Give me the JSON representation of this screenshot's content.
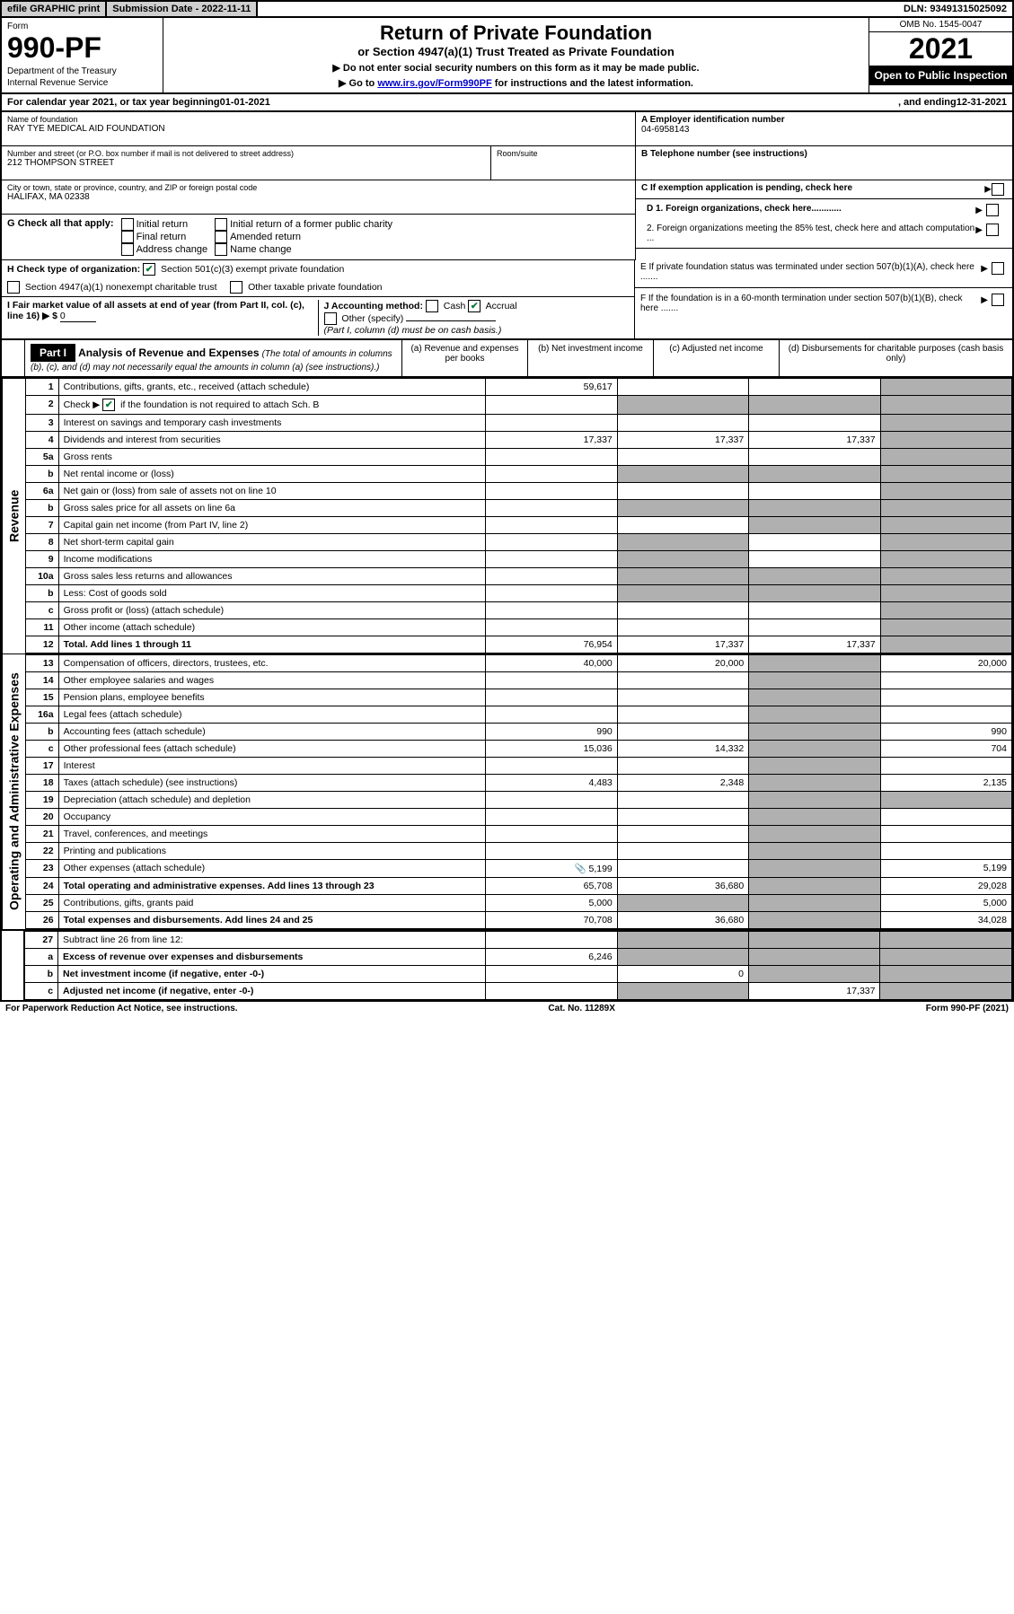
{
  "topbar": {
    "efile": "efile GRAPHIC print",
    "submission": "Submission Date - 2022-11-11",
    "dln": "DLN: 93491315025092"
  },
  "header": {
    "form_label": "Form",
    "form_number": "990-PF",
    "dept1": "Department of the Treasury",
    "dept2": "Internal Revenue Service",
    "title": "Return of Private Foundation",
    "subtitle": "or Section 4947(a)(1) Trust Treated as Private Foundation",
    "instr1": "▶ Do not enter social security numbers on this form as it may be made public.",
    "instr2_pre": "▶ Go to ",
    "instr2_link": "www.irs.gov/Form990PF",
    "instr2_post": " for instructions and the latest information.",
    "omb": "OMB No. 1545-0047",
    "year": "2021",
    "open_public": "Open to Public Inspection"
  },
  "calendar": {
    "text_pre": "For calendar year 2021, or tax year beginning ",
    "begin": "01-01-2021",
    "text_mid": " , and ending ",
    "end": "12-31-2021"
  },
  "foundation": {
    "name_label": "Name of foundation",
    "name": "RAY TYE MEDICAL AID FOUNDATION",
    "addr_label": "Number and street (or P.O. box number if mail is not delivered to street address)",
    "addr": "212 THOMPSON STREET",
    "room_label": "Room/suite",
    "city_label": "City or town, state or province, country, and ZIP or foreign postal code",
    "city": "HALIFAX, MA  02338",
    "ein_label": "A Employer identification number",
    "ein": "04-6958143",
    "phone_label": "B Telephone number (see instructions)",
    "pending_label": "C If exemption application is pending, check here"
  },
  "g_section": {
    "lead": "G Check all that apply:",
    "opts": [
      "Initial return",
      "Final return",
      "Address change",
      "Initial return of a former public charity",
      "Amended return",
      "Name change"
    ]
  },
  "h_section": {
    "lead": "H Check type of organization:",
    "opt1": "Section 501(c)(3) exempt private foundation",
    "opt2": "Section 4947(a)(1) nonexempt charitable trust",
    "opt3": "Other taxable private foundation",
    "opt1_checked": true
  },
  "i_section": {
    "lead": "I Fair market value of all assets at end of year (from Part II, col. (c), line 16) ▶ $",
    "value": "0"
  },
  "j_section": {
    "lead": "J Accounting method:",
    "cash": "Cash",
    "accrual": "Accrual",
    "accrual_checked": true,
    "other": "Other (specify)",
    "note": "(Part I, column (d) must be on cash basis.)"
  },
  "d_section": {
    "d1": "D 1. Foreign organizations, check here............",
    "d2": "2. Foreign organizations meeting the 85% test, check here and attach computation ..."
  },
  "e_section": "E  If private foundation status was terminated under section 507(b)(1)(A), check here .......",
  "f_section": "F  If the foundation is in a 60-month termination under section 507(b)(1)(B), check here .......",
  "part1": {
    "label": "Part I",
    "title": "Analysis of Revenue and Expenses",
    "title_note": "(The total of amounts in columns (b), (c), and (d) may not necessarily equal the amounts in column (a) (see instructions).)",
    "col_a": "(a) Revenue and expenses per books",
    "col_b": "(b) Net investment income",
    "col_c": "(c) Adjusted net income",
    "col_d": "(d) Disbursements for charitable purposes (cash basis only)"
  },
  "side_labels": {
    "revenue": "Revenue",
    "expenses": "Operating and Administrative Expenses"
  },
  "rows": {
    "r1": {
      "n": "1",
      "d": "Contributions, gifts, grants, etc., received (attach schedule)",
      "a": "59,617"
    },
    "r2": {
      "n": "2",
      "d_pre": "Check ▶ ",
      "d_post": " if the foundation is not required to attach Sch. B",
      "checked": true
    },
    "r3": {
      "n": "3",
      "d": "Interest on savings and temporary cash investments"
    },
    "r4": {
      "n": "4",
      "d": "Dividends and interest from securities",
      "a": "17,337",
      "b": "17,337",
      "c": "17,337"
    },
    "r5a": {
      "n": "5a",
      "d": "Gross rents"
    },
    "r5b": {
      "n": "b",
      "d": "Net rental income or (loss)"
    },
    "r6a": {
      "n": "6a",
      "d": "Net gain or (loss) from sale of assets not on line 10"
    },
    "r6b": {
      "n": "b",
      "d": "Gross sales price for all assets on line 6a"
    },
    "r7": {
      "n": "7",
      "d": "Capital gain net income (from Part IV, line 2)"
    },
    "r8": {
      "n": "8",
      "d": "Net short-term capital gain"
    },
    "r9": {
      "n": "9",
      "d": "Income modifications"
    },
    "r10a": {
      "n": "10a",
      "d": "Gross sales less returns and allowances"
    },
    "r10b": {
      "n": "b",
      "d": "Less: Cost of goods sold"
    },
    "r10c": {
      "n": "c",
      "d": "Gross profit or (loss) (attach schedule)"
    },
    "r11": {
      "n": "11",
      "d": "Other income (attach schedule)"
    },
    "r12": {
      "n": "12",
      "d": "Total. Add lines 1 through 11",
      "a": "76,954",
      "b": "17,337",
      "c": "17,337",
      "bold": true
    },
    "r13": {
      "n": "13",
      "d": "Compensation of officers, directors, trustees, etc.",
      "a": "40,000",
      "b": "20,000",
      "dd": "20,000"
    },
    "r14": {
      "n": "14",
      "d": "Other employee salaries and wages"
    },
    "r15": {
      "n": "15",
      "d": "Pension plans, employee benefits"
    },
    "r16a": {
      "n": "16a",
      "d": "Legal fees (attach schedule)"
    },
    "r16b": {
      "n": "b",
      "d": "Accounting fees (attach schedule)",
      "a": "990",
      "dd": "990"
    },
    "r16c": {
      "n": "c",
      "d": "Other professional fees (attach schedule)",
      "a": "15,036",
      "b": "14,332",
      "dd": "704"
    },
    "r17": {
      "n": "17",
      "d": "Interest"
    },
    "r18": {
      "n": "18",
      "d": "Taxes (attach schedule) (see instructions)",
      "a": "4,483",
      "b": "2,348",
      "dd": "2,135"
    },
    "r19": {
      "n": "19",
      "d": "Depreciation (attach schedule) and depletion"
    },
    "r20": {
      "n": "20",
      "d": "Occupancy"
    },
    "r21": {
      "n": "21",
      "d": "Travel, conferences, and meetings"
    },
    "r22": {
      "n": "22",
      "d": "Printing and publications"
    },
    "r23": {
      "n": "23",
      "d": "Other expenses (attach schedule)",
      "a": "5,199",
      "dd": "5,199",
      "icon": true
    },
    "r24": {
      "n": "24",
      "d": "Total operating and administrative expenses. Add lines 13 through 23",
      "a": "65,708",
      "b": "36,680",
      "dd": "29,028",
      "bold": true
    },
    "r25": {
      "n": "25",
      "d": "Contributions, gifts, grants paid",
      "a": "5,000",
      "dd": "5,000"
    },
    "r26": {
      "n": "26",
      "d": "Total expenses and disbursements. Add lines 24 and 25",
      "a": "70,708",
      "b": "36,680",
      "dd": "34,028",
      "bold": true
    },
    "r27": {
      "n": "27",
      "d": "Subtract line 26 from line 12:"
    },
    "r27a": {
      "n": "a",
      "d": "Excess of revenue over expenses and disbursements",
      "a": "6,246",
      "bold": true
    },
    "r27b": {
      "n": "b",
      "d": "Net investment income (if negative, enter -0-)",
      "b": "0",
      "bold": true
    },
    "r27c": {
      "n": "c",
      "d": "Adjusted net income (if negative, enter -0-)",
      "c": "17,337",
      "bold": true
    }
  },
  "footer": {
    "left": "For Paperwork Reduction Act Notice, see instructions.",
    "mid": "Cat. No. 11289X",
    "right": "Form 990-PF (2021)"
  },
  "colors": {
    "header_gray": "#cfcfcf",
    "shaded_cell": "#b0b0b0",
    "check_green": "#0a7a3a",
    "link_blue": "#0000cc"
  }
}
